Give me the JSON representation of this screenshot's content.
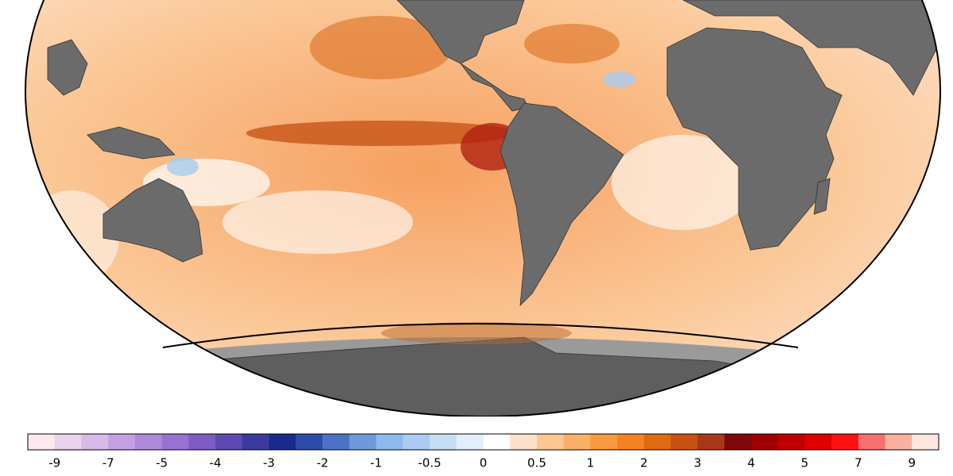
{
  "colorbar": {
    "colors": [
      "#fde8ee",
      "#ead2ee",
      "#d8bae8",
      "#c4a0e2",
      "#ae88da",
      "#9872d2",
      "#7e5cc6",
      "#5e4ab2",
      "#3c3aa0",
      "#182a8c",
      "#2c4ca8",
      "#4c72c8",
      "#6c9adc",
      "#8cbaee",
      "#aaccf2",
      "#c6ddf6",
      "#e2eefa",
      "#ffffff",
      "#fde0c8",
      "#fcc890",
      "#fbb068",
      "#f89a40",
      "#f58220",
      "#e06a10",
      "#c85010",
      "#a83818",
      "#800808",
      "#a00000",
      "#c00000",
      "#e00000",
      "#ff1010",
      "#f87070",
      "#fcb0a0",
      "#fde6de"
    ],
    "labels": [
      -9,
      -7,
      -5,
      -4,
      -3,
      -2,
      -1,
      -0.5,
      0,
      0.5,
      1,
      2,
      3,
      4,
      5,
      7,
      9
    ]
  }
}
